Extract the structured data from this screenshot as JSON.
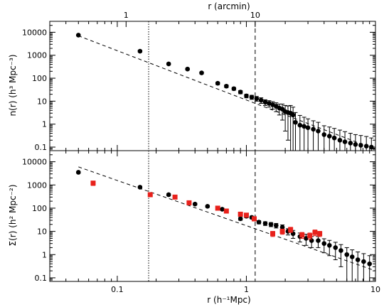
{
  "chart_data": [
    {
      "type": "scatter",
      "panel": "top",
      "ylabel": "n(r) (h³ Mpc⁻³)",
      "xscale": "log",
      "yscale": "log",
      "xlim": [
        0.03,
        10
      ],
      "ylim": [
        0.07,
        30000
      ],
      "top_axis": {
        "label": "r (arcmin)",
        "ticks": [
          {
            "label": "1",
            "at_r": 0.117
          },
          {
            "label": "10",
            "at_r": 1.17
          }
        ]
      },
      "ytick_labels": [
        "0.1",
        "1",
        "10",
        "100",
        "1000",
        "10000"
      ],
      "reference_lines": [
        {
          "style": "dotted",
          "x": 0.175
        },
        {
          "style": "dashed",
          "x": 1.17
        }
      ],
      "fit_line": {
        "style": "dashed",
        "x": [
          0.05,
          10
        ],
        "y": [
          7000,
          0.08
        ]
      },
      "series": [
        {
          "color": "#000000",
          "marker": "circle",
          "x": [
            0.05,
            0.15,
            0.25,
            0.35,
            0.45,
            0.6,
            0.7,
            0.8,
            0.9,
            1.0,
            1.1,
            1.2,
            1.3,
            1.4,
            1.5,
            1.6,
            1.7,
            1.8,
            1.9,
            2.0,
            2.1,
            2.2,
            2.3,
            2.4,
            2.6,
            2.8,
            3.0,
            3.3,
            3.6,
            4.0,
            4.4,
            4.8,
            5.3,
            5.8,
            6.4,
            7.0,
            7.7,
            8.5,
            9.3
          ],
          "y": [
            7500,
            1500,
            420,
            250,
            170,
            60,
            45,
            35,
            25,
            17,
            15,
            13,
            11,
            9,
            8,
            7,
            6,
            5,
            4.5,
            3.5,
            3.2,
            3.0,
            2.5,
            1.2,
            0.9,
            0.8,
            0.7,
            0.6,
            0.5,
            0.35,
            0.3,
            0.25,
            0.2,
            0.17,
            0.15,
            0.13,
            0.12,
            0.11,
            0.1
          ],
          "yerr": [
            600,
            150,
            40,
            25,
            18,
            8,
            6,
            5,
            4,
            3,
            3,
            3,
            3,
            2.5,
            2.5,
            2.5,
            2.5,
            2.5,
            3,
            3,
            3,
            3.5,
            3,
            2,
            1.5,
            1.2,
            1.0,
            0.8,
            0.7,
            0.5,
            0.45,
            0.4,
            0.35,
            0.3,
            0.25,
            0.22,
            0.2,
            0.18,
            0.15
          ]
        }
      ]
    },
    {
      "type": "scatter",
      "panel": "bottom",
      "xlabel": "r (h⁻¹Mpc)",
      "ylabel": "Σ(r) (h² Mpc⁻²)",
      "xscale": "log",
      "yscale": "log",
      "xlim": [
        0.03,
        10
      ],
      "ylim": [
        0.07,
        30000
      ],
      "xtick_labels": [
        "0.1",
        "1",
        "10"
      ],
      "ytick_labels": [
        "0.1",
        "1",
        "10",
        "100",
        "1000",
        "10000"
      ],
      "reference_lines": [
        {
          "style": "dotted",
          "x": 0.175
        },
        {
          "style": "dashed",
          "x": 1.17
        }
      ],
      "fit_line": {
        "style": "dashed",
        "x": [
          0.05,
          10
        ],
        "y": [
          6000,
          0.2
        ]
      },
      "series": [
        {
          "color": "#000000",
          "marker": "circle",
          "x": [
            0.05,
            0.15,
            0.25,
            0.4,
            0.5,
            0.65,
            0.9,
            1.0,
            1.1,
            1.25,
            1.4,
            1.55,
            1.7,
            1.9,
            2.1,
            2.3,
            2.6,
            2.9,
            3.2,
            3.6,
            4.0,
            4.4,
            4.9,
            5.4,
            6.0,
            6.6,
            7.3,
            8.1,
            9.0
          ],
          "y": [
            3500,
            800,
            380,
            150,
            120,
            90,
            35,
            45,
            40,
            25,
            22,
            20,
            18,
            15,
            10,
            8,
            6,
            5,
            4,
            4,
            3,
            2.5,
            2,
            1.5,
            1,
            0.8,
            0.6,
            0.5,
            0.4
          ],
          "yerr": [
            300,
            80,
            40,
            15,
            12,
            9,
            5,
            6,
            5,
            4,
            4,
            4,
            4,
            4,
            3,
            3,
            2.5,
            2.5,
            2,
            2,
            1.8,
            1.6,
            1.4,
            1.2,
            1.0,
            0.8,
            0.7,
            0.6,
            0.5
          ]
        },
        {
          "color": "#e8211b",
          "marker": "square",
          "x": [
            0.065,
            0.18,
            0.28,
            0.36,
            0.6,
            0.7,
            0.9,
            1.0,
            1.15,
            1.6,
            1.9,
            2.2,
            2.7,
            3.1,
            3.4,
            3.7
          ],
          "y": [
            1200,
            380,
            300,
            170,
            100,
            75,
            55,
            50,
            35,
            8,
            10,
            12,
            7,
            6.5,
            9,
            8
          ],
          "yerr": [
            250,
            60,
            50,
            30,
            18,
            14,
            10,
            9,
            7,
            2,
            2.5,
            3,
            2,
            2,
            2.5,
            2
          ]
        }
      ]
    }
  ]
}
